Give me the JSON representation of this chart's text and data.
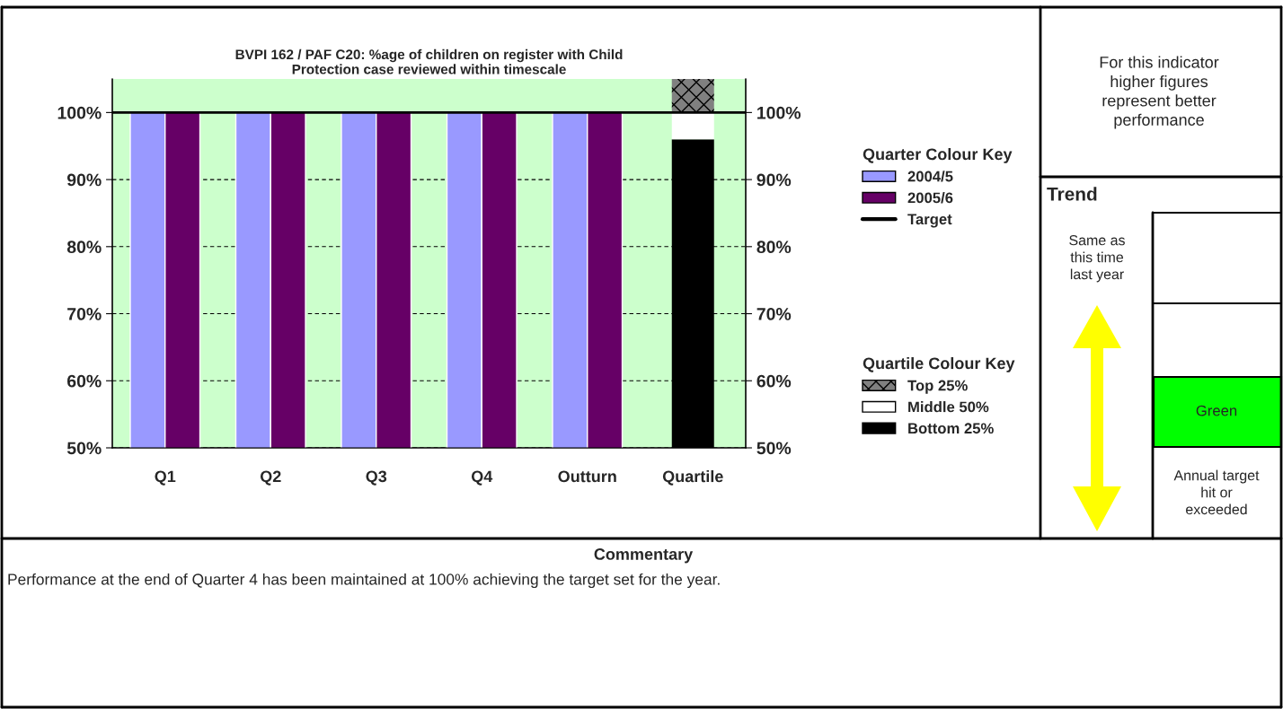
{
  "chart_data": {
    "type": "bar",
    "title": "BVPI 162 / PAF C20: %age of children on register with Child\nProtection case reviewed within timescale",
    "categories": [
      "Q1",
      "Q2",
      "Q3",
      "Q4",
      "Outturn",
      "Quartile"
    ],
    "series": [
      {
        "name": "2004/5",
        "color": "#9999ff",
        "values": [
          100,
          100,
          100,
          100,
          100,
          null
        ]
      },
      {
        "name": "2005/6",
        "color": "#660066",
        "values": [
          100,
          100,
          100,
          100,
          100,
          null
        ]
      },
      {
        "name": "Bottom 25%",
        "color": "#000000",
        "values": [
          null,
          null,
          null,
          null,
          null,
          96
        ],
        "base": [
          null,
          null,
          null,
          null,
          null,
          0
        ]
      },
      {
        "name": "Middle 50%",
        "color": "#ffffff",
        "values": [
          null,
          null,
          null,
          null,
          null,
          4
        ],
        "base": [
          null,
          null,
          null,
          null,
          null,
          96
        ]
      },
      {
        "name": "Top 25%",
        "color": "#808080",
        "values": [
          null,
          null,
          null,
          null,
          null,
          5
        ],
        "base": [
          null,
          null,
          null,
          null,
          null,
          100
        ]
      }
    ],
    "ylim": [
      50,
      105
    ],
    "yticks": [
      {
        "value": 50,
        "label": "50%"
      },
      {
        "value": 60,
        "label": "60%"
      },
      {
        "value": 70,
        "label": "70%"
      },
      {
        "value": 80,
        "label": "80%"
      },
      {
        "value": 90,
        "label": "90%"
      },
      {
        "value": 100,
        "label": "100%"
      }
    ],
    "y2lim": [
      50,
      105
    ],
    "y2ticks": [
      {
        "value": 50,
        "label": "50%"
      },
      {
        "value": 60,
        "label": "60%"
      },
      {
        "value": 70,
        "label": "70%"
      },
      {
        "value": 80,
        "label": "80%"
      },
      {
        "value": 90,
        "label": "90%"
      },
      {
        "value": 100,
        "label": "100%"
      }
    ],
    "ref_lines": [
      {
        "axis": "y",
        "value": 100,
        "label": "Target",
        "color": "#000000"
      }
    ],
    "grid": "y",
    "legend": "right",
    "legend_title": "Quarter Colour Key",
    "annotations": [
      "Quartile Colour Key",
      "For this indicator\nhigher figures\nrepresent better\nperformance",
      "Trend",
      "Same as\nthis time\nlast year",
      "Green",
      "Annual target\nhit or\nexceeded",
      "Commentary",
      "Performance at the end of Quarter 4 has been maintained at 100% achieving the target set for the year."
    ]
  }
}
